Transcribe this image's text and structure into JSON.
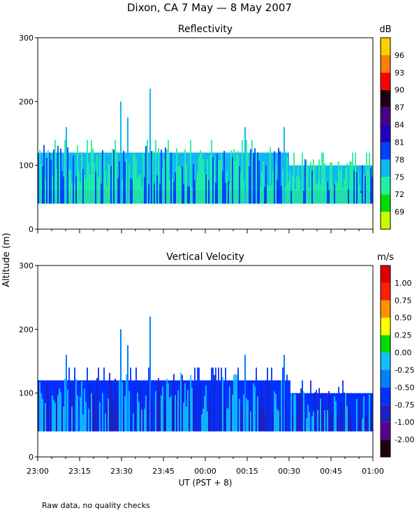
{
  "figure": {
    "title": "Dixon, CA  7 May —  8 May 2007",
    "y_axis_label": "Altitude (m)",
    "x_axis_label": "UT  (PST + 8)",
    "footnote": "Raw data, no quality checks"
  },
  "chart_data": [
    {
      "type": "heatmap",
      "title": "Reflectivity",
      "xlabel": "UT  (PST + 8)",
      "ylabel": "Altitude (m)",
      "x_ticks": [
        "23:00",
        "23:15",
        "23:30",
        "23:45",
        "00:00",
        "00:15",
        "00:30",
        "00:45",
        "01:00"
      ],
      "x_range_minutes": [
        0,
        120
      ],
      "y_ticks": [
        0,
        100,
        200,
        300
      ],
      "ylim": [
        0,
        300
      ],
      "colorbar": {
        "unit": "dB",
        "levels": [
          "69",
          "72",
          "75",
          "78",
          "81",
          "84",
          "87",
          "90",
          "93",
          "96"
        ],
        "colors": [
          "#c8ff00",
          "#00dd00",
          "#22f0a0",
          "#10b8f0",
          "#0040ff",
          "#2200b8",
          "#4a0088",
          "#200010",
          "#ff0000",
          "#ff8000",
          "#ffd000"
        ]
      },
      "data": {
        "bottom_m": 40,
        "base_top_m": 120,
        "base_top_after_0030_m": 100,
        "dense_blue_top_m": 60,
        "spikes": [
          {
            "t_min": 10,
            "top_m": 160
          },
          {
            "t_min": 29.5,
            "top_m": 200
          },
          {
            "t_min": 32,
            "top_m": 175
          },
          {
            "t_min": 40,
            "top_m": 220
          },
          {
            "t_min": 74,
            "top_m": 160
          },
          {
            "t_min": 88,
            "top_m": 160
          }
        ]
      }
    },
    {
      "type": "heatmap",
      "title": "Vertical Velocity",
      "xlabel": "UT  (PST + 8)",
      "ylabel": "Altitude (m)",
      "x_ticks": [
        "23:00",
        "23:15",
        "23:30",
        "23:45",
        "00:00",
        "00:15",
        "00:30",
        "00:45",
        "01:00"
      ],
      "x_range_minutes": [
        0,
        120
      ],
      "y_ticks": [
        0,
        100,
        200,
        300
      ],
      "ylim": [
        0,
        300
      ],
      "colorbar": {
        "unit": "m/s",
        "levels": [
          "-2.00",
          "-1.00",
          "-0.75",
          "-0.50",
          "-0.25",
          "0.00",
          "0.25",
          "0.50",
          "0.75",
          "1.00"
        ],
        "colors": [
          "#200010",
          "#5a0090",
          "#2020c0",
          "#0030ff",
          "#0080ff",
          "#10c0ff",
          "#00dd00",
          "#ffff00",
          "#ff9000",
          "#ff2000",
          "#e00000"
        ]
      },
      "data": {
        "bottom_m": 40,
        "base_top_m": 120,
        "base_top_after_0030_m": 100,
        "spikes": [
          {
            "t_min": 10,
            "top_m": 160
          },
          {
            "t_min": 29.5,
            "top_m": 200
          },
          {
            "t_min": 32,
            "top_m": 175
          },
          {
            "t_min": 40,
            "top_m": 220
          },
          {
            "t_min": 74,
            "top_m": 160
          },
          {
            "t_min": 88,
            "top_m": 160
          }
        ]
      }
    }
  ]
}
